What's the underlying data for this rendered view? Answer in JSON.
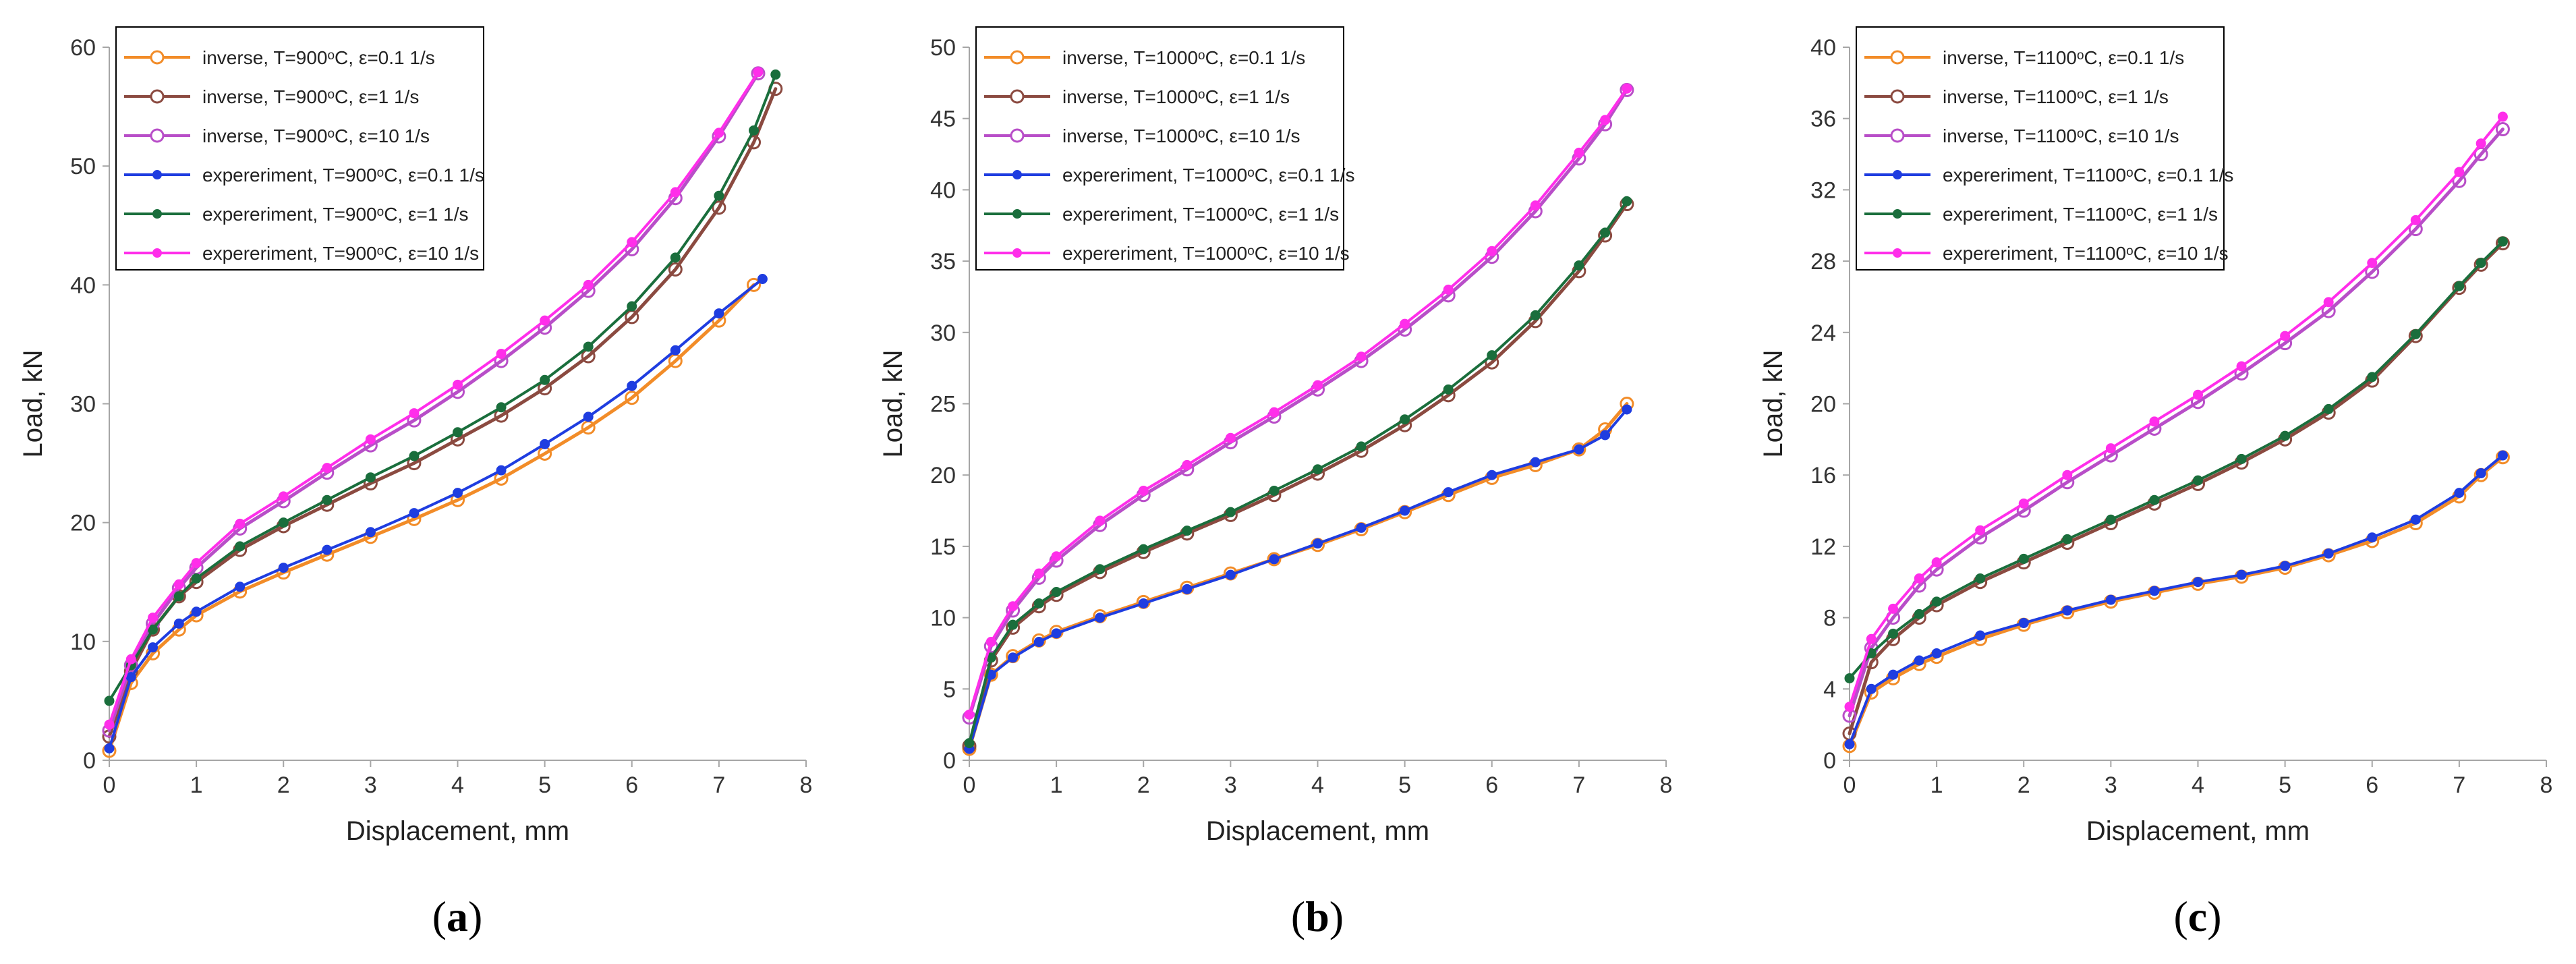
{
  "colors": {
    "inv01": "#f28c28",
    "inv1": "#8b4a40",
    "inv10": "#b84ec8",
    "exp01": "#1f3de0",
    "exp1": "#1a6e3c",
    "exp10": "#ff2eea",
    "axis": "#a6a6a6"
  },
  "chart_data": [
    {
      "type": "line",
      "panel_label_open": "(",
      "panel_label_letter": "a",
      "panel_label_close": ")",
      "xlabel": "Displacement, mm",
      "ylabel": "Load, kN",
      "xlim": [
        0,
        8
      ],
      "ylim": [
        0,
        60
      ],
      "xticks": [
        0,
        1,
        2,
        3,
        4,
        5,
        6,
        7,
        8
      ],
      "yticks": [
        0,
        10,
        20,
        30,
        40,
        50,
        60
      ],
      "legend_position": "top-left",
      "series": [
        {
          "name": "inverse, T=900ᵒC, ε=0.1 1/s",
          "style": "inverse",
          "color_key": "inv01",
          "x": [
            0.0,
            0.25,
            0.5,
            0.8,
            1.0,
            1.5,
            2.0,
            2.5,
            3.0,
            3.5,
            4.0,
            4.5,
            5.0,
            5.5,
            6.0,
            6.5,
            7.0,
            7.4
          ],
          "y": [
            0.8,
            6.5,
            9.0,
            11.0,
            12.2,
            14.2,
            15.8,
            17.3,
            18.8,
            20.3,
            21.9,
            23.7,
            25.8,
            28.0,
            30.5,
            33.6,
            37.0,
            40.0
          ]
        },
        {
          "name": "inverse, T=900ᵒC, ε=1 1/s",
          "style": "inverse",
          "color_key": "inv1",
          "x": [
            0.0,
            0.25,
            0.5,
            0.8,
            1.0,
            1.5,
            2.0,
            2.5,
            3.0,
            3.5,
            4.0,
            4.5,
            5.0,
            5.5,
            6.0,
            6.5,
            7.0,
            7.4,
            7.65
          ],
          "y": [
            2.0,
            7.5,
            11.0,
            13.8,
            15.0,
            17.7,
            19.7,
            21.5,
            23.3,
            25.0,
            27.0,
            29.0,
            31.3,
            34.0,
            37.3,
            41.3,
            46.5,
            52.0,
            56.5
          ]
        },
        {
          "name": "inverse, T=900ᵒC, ε=10 1/s",
          "style": "inverse",
          "color_key": "inv10",
          "x": [
            0.0,
            0.25,
            0.5,
            0.8,
            1.0,
            1.5,
            2.0,
            2.5,
            3.0,
            3.5,
            4.0,
            4.5,
            5.0,
            5.5,
            6.0,
            6.5,
            7.0,
            7.45
          ],
          "y": [
            2.5,
            8.0,
            11.5,
            14.5,
            16.2,
            19.5,
            21.8,
            24.2,
            26.5,
            28.6,
            31.0,
            33.6,
            36.4,
            39.5,
            43.0,
            47.3,
            52.5,
            57.8
          ]
        },
        {
          "name": "expereriment, T=900ᵒC, ε=0.1 1/s",
          "style": "experiment",
          "color_key": "exp01",
          "x": [
            0.0,
            0.25,
            0.5,
            0.8,
            1.0,
            1.5,
            2.0,
            2.5,
            3.0,
            3.5,
            4.0,
            4.5,
            5.0,
            5.5,
            6.0,
            6.5,
            7.0,
            7.5
          ],
          "y": [
            1.0,
            7.0,
            9.5,
            11.5,
            12.5,
            14.6,
            16.2,
            17.7,
            19.2,
            20.8,
            22.5,
            24.4,
            26.6,
            28.9,
            31.5,
            34.5,
            37.6,
            40.5
          ]
        },
        {
          "name": "expereriment, T=900ᵒC, ε=1 1/s",
          "style": "experiment",
          "color_key": "exp1",
          "x": [
            0.0,
            0.25,
            0.5,
            0.8,
            1.0,
            1.5,
            2.0,
            2.5,
            3.0,
            3.5,
            4.0,
            4.5,
            5.0,
            5.5,
            6.0,
            6.5,
            7.0,
            7.4,
            7.65
          ],
          "y": [
            5.0,
            8.0,
            11.0,
            13.8,
            15.3,
            18.0,
            20.0,
            21.9,
            23.8,
            25.6,
            27.6,
            29.7,
            32.0,
            34.8,
            38.2,
            42.3,
            47.5,
            53.0,
            57.7
          ]
        },
        {
          "name": "expereriment, T=900ᵒC, ε=10 1/s",
          "style": "experiment",
          "color_key": "exp10",
          "x": [
            0.0,
            0.25,
            0.5,
            0.8,
            1.0,
            1.5,
            2.0,
            2.5,
            3.0,
            3.5,
            4.0,
            4.5,
            5.0,
            5.5,
            6.0,
            6.5,
            7.0,
            7.45
          ],
          "y": [
            3.0,
            8.5,
            12.0,
            14.8,
            16.6,
            19.9,
            22.2,
            24.6,
            27.0,
            29.2,
            31.6,
            34.2,
            37.0,
            40.0,
            43.6,
            47.8,
            52.8,
            57.9
          ]
        }
      ]
    },
    {
      "type": "line",
      "panel_label_open": "(",
      "panel_label_letter": "b",
      "panel_label_close": ")",
      "xlabel": "Displacement, mm",
      "ylabel": "Load, kN",
      "xlim": [
        0,
        8
      ],
      "ylim": [
        0,
        50
      ],
      "xticks": [
        0,
        1,
        2,
        3,
        4,
        5,
        6,
        7,
        8
      ],
      "yticks": [
        0,
        5,
        10,
        15,
        20,
        25,
        30,
        35,
        40,
        45,
        50
      ],
      "legend_position": "top-left",
      "series": [
        {
          "name": "inverse, T=1000ᵒC, ε=0.1 1/s",
          "style": "inverse",
          "color_key": "inv01",
          "x": [
            0.0,
            0.25,
            0.5,
            0.8,
            1.0,
            1.5,
            2.0,
            2.5,
            3.0,
            3.5,
            4.0,
            4.5,
            5.0,
            5.5,
            6.0,
            6.5,
            7.0,
            7.3,
            7.55
          ],
          "y": [
            0.8,
            6.0,
            7.3,
            8.4,
            9.0,
            10.1,
            11.1,
            12.1,
            13.1,
            14.1,
            15.1,
            16.2,
            17.4,
            18.6,
            19.8,
            20.7,
            21.8,
            23.2,
            25.0
          ]
        },
        {
          "name": "inverse, T=1000ᵒC, ε=1 1/s",
          "style": "inverse",
          "color_key": "inv1",
          "x": [
            0.0,
            0.25,
            0.5,
            0.8,
            1.0,
            1.5,
            2.0,
            2.5,
            3.0,
            3.5,
            4.0,
            4.5,
            5.0,
            5.5,
            6.0,
            6.5,
            7.0,
            7.3,
            7.55
          ],
          "y": [
            1.0,
            7.0,
            9.3,
            10.8,
            11.6,
            13.2,
            14.6,
            15.9,
            17.2,
            18.6,
            20.1,
            21.7,
            23.5,
            25.6,
            27.9,
            30.8,
            34.3,
            36.8,
            39.0
          ]
        },
        {
          "name": "inverse, T=1000ᵒC, ε=10 1/s",
          "style": "inverse",
          "color_key": "inv10",
          "x": [
            0.0,
            0.25,
            0.5,
            0.8,
            1.0,
            1.5,
            2.0,
            2.5,
            3.0,
            3.5,
            4.0,
            4.5,
            5.0,
            5.5,
            6.0,
            6.5,
            7.0,
            7.3,
            7.55
          ],
          "y": [
            3.0,
            8.0,
            10.5,
            12.8,
            14.0,
            16.5,
            18.6,
            20.4,
            22.3,
            24.1,
            26.0,
            28.0,
            30.2,
            32.6,
            35.3,
            38.5,
            42.2,
            44.6,
            47.0
          ]
        },
        {
          "name": "expereriment, T=1000ᵒC, ε=0.1 1/s",
          "style": "experiment",
          "color_key": "exp01",
          "x": [
            0.0,
            0.25,
            0.5,
            0.8,
            1.0,
            1.5,
            2.0,
            2.5,
            3.0,
            3.5,
            4.0,
            4.5,
            5.0,
            5.5,
            6.0,
            6.5,
            7.0,
            7.3,
            7.55
          ],
          "y": [
            0.8,
            6.0,
            7.2,
            8.3,
            8.9,
            10.0,
            11.0,
            12.0,
            13.0,
            14.1,
            15.2,
            16.3,
            17.5,
            18.8,
            20.0,
            20.9,
            21.8,
            22.8,
            24.6
          ]
        },
        {
          "name": "expereriment, T=1000ᵒC, ε=1 1/s",
          "style": "experiment",
          "color_key": "exp1",
          "x": [
            0.0,
            0.25,
            0.5,
            0.8,
            1.0,
            1.5,
            2.0,
            2.5,
            3.0,
            3.5,
            4.0,
            4.5,
            5.0,
            5.5,
            6.0,
            6.5,
            7.0,
            7.3,
            7.55
          ],
          "y": [
            1.2,
            7.2,
            9.5,
            11.0,
            11.8,
            13.4,
            14.8,
            16.1,
            17.4,
            18.9,
            20.4,
            22.0,
            23.9,
            26.0,
            28.4,
            31.2,
            34.7,
            37.0,
            39.2
          ]
        },
        {
          "name": "expereriment, T=1000ᵒC, ε=10 1/s",
          "style": "experiment",
          "color_key": "exp10",
          "x": [
            0.0,
            0.25,
            0.5,
            0.8,
            1.0,
            1.5,
            2.0,
            2.5,
            3.0,
            3.5,
            4.0,
            4.5,
            5.0,
            5.5,
            6.0,
            6.5,
            7.0,
            7.3,
            7.55
          ],
          "y": [
            3.2,
            8.3,
            10.8,
            13.1,
            14.3,
            16.8,
            18.9,
            20.7,
            22.6,
            24.4,
            26.3,
            28.3,
            30.6,
            33.0,
            35.7,
            38.9,
            42.6,
            44.9,
            47.1
          ]
        }
      ]
    },
    {
      "type": "line",
      "panel_label_open": "(",
      "panel_label_letter": "c",
      "panel_label_close": ")",
      "xlabel": "Displacement, mm",
      "ylabel": "Load, kN",
      "xlim": [
        0,
        8
      ],
      "ylim": [
        0,
        40
      ],
      "xticks": [
        0,
        1,
        2,
        3,
        4,
        5,
        6,
        7,
        8
      ],
      "yticks": [
        0,
        4,
        8,
        12,
        16,
        20,
        24,
        28,
        32,
        36,
        40
      ],
      "legend_position": "top-left",
      "series": [
        {
          "name": "inverse, T=1100ᵒC, ε=0.1 1/s",
          "style": "inverse",
          "color_key": "inv01",
          "x": [
            0.0,
            0.25,
            0.5,
            0.8,
            1.0,
            1.5,
            2.0,
            2.5,
            3.0,
            3.5,
            4.0,
            4.5,
            5.0,
            5.5,
            6.0,
            6.5,
            7.0,
            7.25,
            7.5
          ],
          "y": [
            0.8,
            3.8,
            4.6,
            5.4,
            5.8,
            6.8,
            7.6,
            8.3,
            8.9,
            9.4,
            9.9,
            10.3,
            10.8,
            11.5,
            12.3,
            13.3,
            14.8,
            16.0,
            17.0
          ]
        },
        {
          "name": "inverse, T=1100ᵒC, ε=1 1/s",
          "style": "inverse",
          "color_key": "inv1",
          "x": [
            0.0,
            0.25,
            0.5,
            0.8,
            1.0,
            1.5,
            2.0,
            2.5,
            3.0,
            3.5,
            4.0,
            4.5,
            5.0,
            5.5,
            6.0,
            6.5,
            7.0,
            7.25,
            7.5
          ],
          "y": [
            1.5,
            5.5,
            6.8,
            8.0,
            8.7,
            10.0,
            11.1,
            12.2,
            13.3,
            14.4,
            15.5,
            16.7,
            18.0,
            19.5,
            21.3,
            23.8,
            26.5,
            27.8,
            29.0
          ]
        },
        {
          "name": "inverse, T=1100ᵒC, ε=10 1/s",
          "style": "inverse",
          "color_key": "inv10",
          "x": [
            0.0,
            0.25,
            0.5,
            0.8,
            1.0,
            1.5,
            2.0,
            2.5,
            3.0,
            3.5,
            4.0,
            4.5,
            5.0,
            5.5,
            6.0,
            6.5,
            7.0,
            7.25,
            7.5
          ],
          "y": [
            2.5,
            6.3,
            8.0,
            9.8,
            10.7,
            12.5,
            14.0,
            15.6,
            17.1,
            18.6,
            20.1,
            21.7,
            23.4,
            25.2,
            27.4,
            29.8,
            32.5,
            34.0,
            35.4
          ]
        },
        {
          "name": "expereriment, T=1100ᵒC, ε=0.1 1/s",
          "style": "experiment",
          "color_key": "exp01",
          "x": [
            0.0,
            0.25,
            0.5,
            0.8,
            1.0,
            1.5,
            2.0,
            2.5,
            3.0,
            3.5,
            4.0,
            4.5,
            5.0,
            5.5,
            6.0,
            6.5,
            7.0,
            7.25,
            7.5
          ],
          "y": [
            0.9,
            4.0,
            4.8,
            5.6,
            6.0,
            7.0,
            7.7,
            8.4,
            9.0,
            9.5,
            10.0,
            10.4,
            10.9,
            11.6,
            12.5,
            13.5,
            15.0,
            16.1,
            17.1
          ]
        },
        {
          "name": "expereriment, T=1100ᵒC, ε=1 1/s",
          "style": "experiment",
          "color_key": "exp1",
          "x": [
            0.0,
            0.25,
            0.5,
            0.8,
            1.0,
            1.5,
            2.0,
            2.5,
            3.0,
            3.5,
            4.0,
            4.5,
            5.0,
            5.5,
            6.0,
            6.5,
            7.0,
            7.25,
            7.5
          ],
          "y": [
            4.6,
            6.0,
            7.1,
            8.2,
            8.9,
            10.2,
            11.3,
            12.4,
            13.5,
            14.6,
            15.7,
            16.9,
            18.2,
            19.7,
            21.5,
            23.9,
            26.6,
            27.9,
            29.1
          ]
        },
        {
          "name": "expereriment, T=1100ᵒC, ε=10 1/s",
          "style": "experiment",
          "color_key": "exp10",
          "x": [
            0.0,
            0.25,
            0.5,
            0.8,
            1.0,
            1.5,
            2.0,
            2.5,
            3.0,
            3.5,
            4.0,
            4.5,
            5.0,
            5.5,
            6.0,
            6.5,
            7.0,
            7.25,
            7.5
          ],
          "y": [
            3.0,
            6.8,
            8.5,
            10.2,
            11.1,
            12.9,
            14.4,
            16.0,
            17.5,
            19.0,
            20.5,
            22.1,
            23.8,
            25.7,
            27.9,
            30.3,
            33.0,
            34.6,
            36.1
          ]
        }
      ]
    }
  ]
}
